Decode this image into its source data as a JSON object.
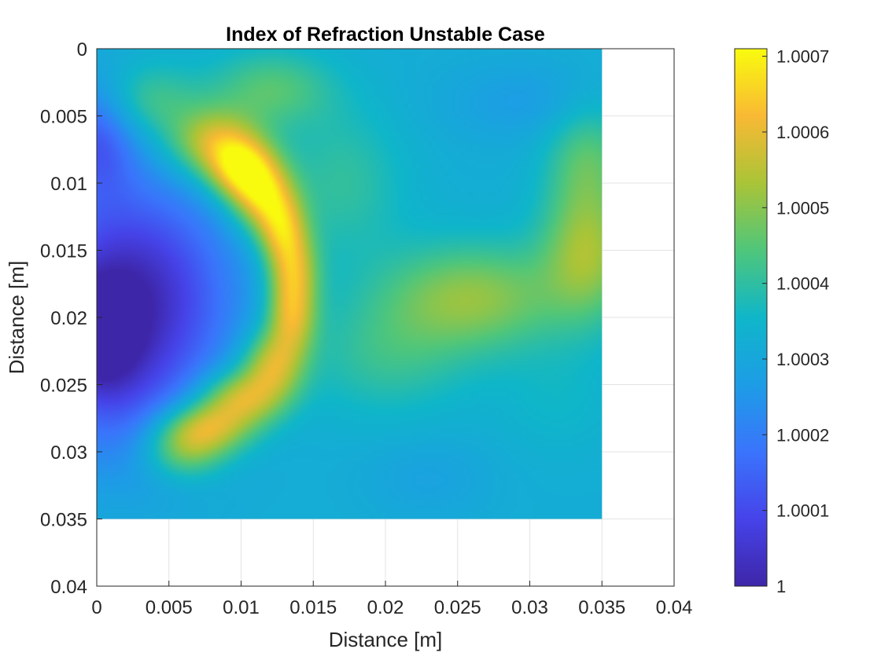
{
  "chart_data": {
    "type": "heatmap",
    "title": "Index of Refraction Unstable Case",
    "xlabel": "Distance [m]",
    "ylabel": "Distance [m]",
    "xlim": [
      0,
      0.04
    ],
    "ylim": [
      0,
      0.04
    ],
    "y_axis_direction": "reversed",
    "grid": true,
    "data_extent": {
      "x": [
        0,
        0.035
      ],
      "y": [
        0,
        0.035
      ]
    },
    "x_ticks": [
      "0",
      "0.005",
      "0.01",
      "0.015",
      "0.02",
      "0.025",
      "0.03",
      "0.035",
      "0.04"
    ],
    "y_ticks": [
      "0",
      "0.005",
      "0.01",
      "0.015",
      "0.02",
      "0.025",
      "0.03",
      "0.035",
      "0.04"
    ],
    "colormap": "parula",
    "colorbar": {
      "clim": [
        1.0,
        1.00071
      ],
      "ticks": [
        1.0,
        1.0001,
        1.0002,
        1.0003,
        1.0004,
        1.0005,
        1.0006,
        1.0007
      ],
      "tick_labels": [
        "1",
        "1.0001",
        "1.0002",
        "1.0003",
        "1.0004",
        "1.0005",
        "1.0006",
        "1.0007"
      ],
      "placement": "right"
    },
    "background_value": 1.00032,
    "features": [
      {
        "x": 0.0025,
        "y": 0.0185,
        "value": 0.99996,
        "sx": 0.0048,
        "sy": 0.006
      },
      {
        "x": 0.0,
        "y": 0.0065,
        "value": 1.00012,
        "sx": 0.002,
        "sy": 0.003
      },
      {
        "x": 0.0,
        "y": 0.0215,
        "value": 1.0001,
        "sx": 0.002,
        "sy": 0.003
      },
      {
        "x": 0.0015,
        "y": 0.028,
        "value": 1.00024,
        "sx": 0.004,
        "sy": 0.004
      },
      {
        "x": 0.0082,
        "y": 0.007,
        "value": 1.00062,
        "sx": 0.0022,
        "sy": 0.0018
      },
      {
        "x": 0.01,
        "y": 0.009,
        "value": 1.00068,
        "sx": 0.0016,
        "sy": 0.0016
      },
      {
        "x": 0.0115,
        "y": 0.011,
        "value": 1.00066,
        "sx": 0.0015,
        "sy": 0.0018
      },
      {
        "x": 0.0128,
        "y": 0.0135,
        "value": 1.0006,
        "sx": 0.0012,
        "sy": 0.0018
      },
      {
        "x": 0.0136,
        "y": 0.0165,
        "value": 1.0006,
        "sx": 0.0012,
        "sy": 0.002
      },
      {
        "x": 0.0135,
        "y": 0.02,
        "value": 1.0006,
        "sx": 0.0012,
        "sy": 0.002
      },
      {
        "x": 0.0122,
        "y": 0.0235,
        "value": 1.0006,
        "sx": 0.0015,
        "sy": 0.0018
      },
      {
        "x": 0.01,
        "y": 0.026,
        "value": 1.00062,
        "sx": 0.002,
        "sy": 0.0015
      },
      {
        "x": 0.0075,
        "y": 0.0282,
        "value": 1.00062,
        "sx": 0.0022,
        "sy": 0.0014
      },
      {
        "x": 0.006,
        "y": 0.03,
        "value": 1.00052,
        "sx": 0.002,
        "sy": 0.0015
      },
      {
        "x": 0.0035,
        "y": 0.004,
        "value": 1.00046,
        "sx": 0.0025,
        "sy": 0.002
      },
      {
        "x": 0.012,
        "y": 0.003,
        "value": 1.00047,
        "sx": 0.003,
        "sy": 0.002
      },
      {
        "x": 0.017,
        "y": 0.01,
        "value": 1.00042,
        "sx": 0.003,
        "sy": 0.004
      },
      {
        "x": 0.026,
        "y": 0.0185,
        "value": 1.00054,
        "sx": 0.0045,
        "sy": 0.0028
      },
      {
        "x": 0.034,
        "y": 0.015,
        "value": 1.00055,
        "sx": 0.0022,
        "sy": 0.0035
      },
      {
        "x": 0.034,
        "y": 0.008,
        "value": 1.00046,
        "sx": 0.002,
        "sy": 0.003
      },
      {
        "x": 0.02,
        "y": 0.023,
        "value": 1.00042,
        "sx": 0.004,
        "sy": 0.003
      },
      {
        "x": 0.023,
        "y": 0.032,
        "value": 1.00028,
        "sx": 0.003,
        "sy": 0.002
      },
      {
        "x": 0.03,
        "y": 0.004,
        "value": 1.00026,
        "sx": 0.004,
        "sy": 0.002
      },
      {
        "x": 0.032,
        "y": 0.026,
        "value": 1.00036,
        "sx": 0.003,
        "sy": 0.003
      }
    ]
  }
}
